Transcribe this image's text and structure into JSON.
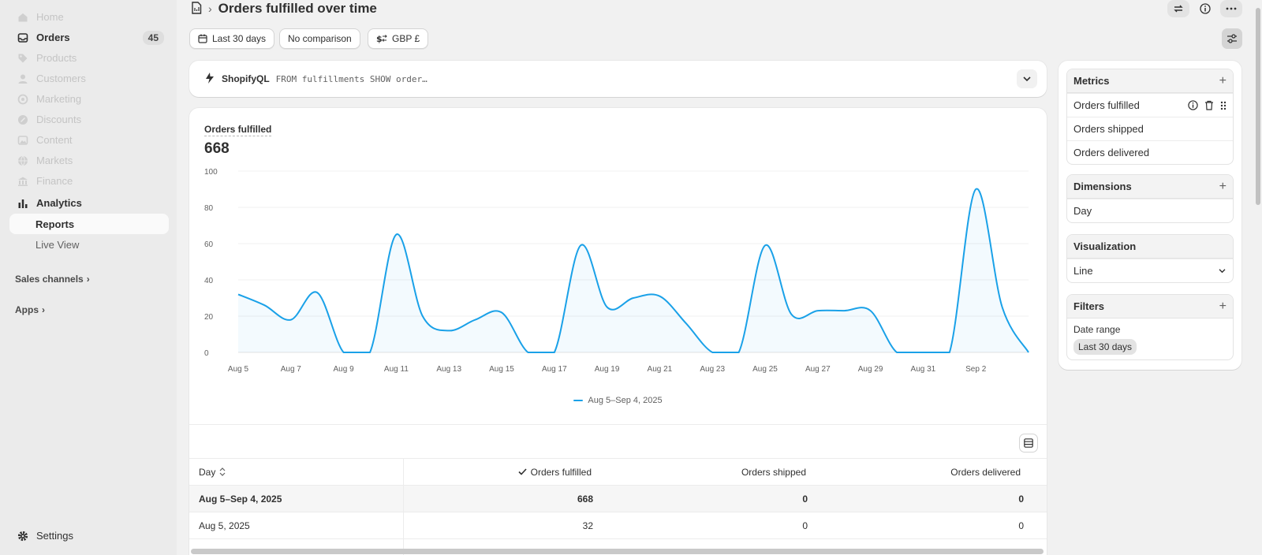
{
  "sidebar": {
    "items": [
      {
        "label": "Home",
        "icon": "home-icon"
      },
      {
        "label": "Orders",
        "icon": "inbox-icon",
        "badge": "45"
      },
      {
        "label": "Products",
        "icon": "tag-icon"
      },
      {
        "label": "Customers",
        "icon": "person-icon"
      },
      {
        "label": "Marketing",
        "icon": "target-icon"
      },
      {
        "label": "Discounts",
        "icon": "discount-icon"
      },
      {
        "label": "Content",
        "icon": "image-icon"
      },
      {
        "label": "Markets",
        "icon": "globe-icon"
      },
      {
        "label": "Finance",
        "icon": "bank-icon"
      },
      {
        "label": "Analytics",
        "icon": "bar-chart-icon"
      }
    ],
    "sub_items": [
      {
        "label": "Reports"
      },
      {
        "label": "Live View"
      }
    ],
    "sales_channels": "Sales channels",
    "apps": "Apps",
    "settings": "Settings"
  },
  "header": {
    "title": "Orders fulfilled over time",
    "date_range": "Last 30 days",
    "comparison": "No comparison",
    "currency": "GBP £"
  },
  "query": {
    "label": "ShopifyQL",
    "code": "FROM fulfillments SHOW order…"
  },
  "metric": {
    "label": "Orders fulfilled",
    "value": "668"
  },
  "chart_data": {
    "type": "line",
    "x": [
      "Aug 5",
      "Aug 6",
      "Aug 7",
      "Aug 8",
      "Aug 9",
      "Aug 10",
      "Aug 11",
      "Aug 12",
      "Aug 13",
      "Aug 14",
      "Aug 15",
      "Aug 16",
      "Aug 17",
      "Aug 18",
      "Aug 19",
      "Aug 20",
      "Aug 21",
      "Aug 22",
      "Aug 23",
      "Aug 24",
      "Aug 25",
      "Aug 26",
      "Aug 27",
      "Aug 28",
      "Aug 29",
      "Aug 30",
      "Aug 31",
      "Sep 1",
      "Sep 2",
      "Sep 3",
      "Sep 4"
    ],
    "x_tick_labels": [
      "Aug 5",
      "Aug 7",
      "Aug 9",
      "Aug 11",
      "Aug 13",
      "Aug 15",
      "Aug 17",
      "Aug 19",
      "Aug 21",
      "Aug 23",
      "Aug 25",
      "Aug 27",
      "Aug 29",
      "Aug 31",
      "Sep 2"
    ],
    "series": [
      {
        "name": "Aug 5–Sep 4, 2025",
        "values": [
          32,
          26,
          18,
          33,
          0,
          0,
          65,
          20,
          12,
          18,
          22,
          0,
          0,
          59,
          25,
          30,
          31,
          16,
          0,
          0,
          59,
          21,
          23,
          23,
          23,
          0,
          0,
          0,
          90,
          25,
          0
        ]
      }
    ],
    "ylim": [
      0,
      100
    ],
    "y_ticks": [
      0,
      20,
      40,
      60,
      80,
      100
    ],
    "grid": true,
    "color": "#1aa1e8"
  },
  "table": {
    "columns": [
      "Day",
      "Orders fulfilled",
      "Orders shipped",
      "Orders delivered"
    ],
    "rows": [
      [
        "Aug 5–Sep 4, 2025",
        "668",
        "0",
        "0"
      ],
      [
        "Aug 5, 2025",
        "32",
        "0",
        "0"
      ]
    ]
  },
  "panel": {
    "metrics_title": "Metrics",
    "metrics": [
      "Orders fulfilled",
      "Orders shipped",
      "Orders delivered"
    ],
    "dimensions_title": "Dimensions",
    "dimensions": [
      "Day"
    ],
    "visualization_title": "Visualization",
    "visualization_value": "Line",
    "filters_title": "Filters",
    "filter_label": "Date range",
    "filter_value": "Last 30 days"
  }
}
